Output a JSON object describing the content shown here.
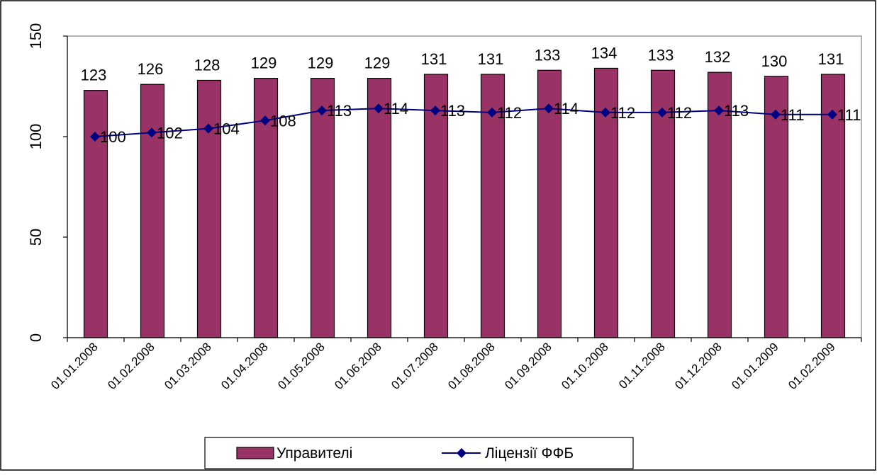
{
  "chart_data": {
    "type": "bar",
    "categories": [
      "01.01.2008",
      "01.02.2008",
      "01.03.2008",
      "01.04.2008",
      "01.05.2008",
      "01.06.2008",
      "01.07.2008",
      "01.08.2008",
      "01.09.2008",
      "01.10.2008",
      "01.11.2008",
      "01.12.2008",
      "01.01.2009",
      "01.02.2009"
    ],
    "series": [
      {
        "name": "Управителі",
        "kind": "bar",
        "color": "#993366",
        "values": [
          123,
          126,
          128,
          129,
          129,
          129,
          131,
          131,
          133,
          134,
          133,
          132,
          130,
          131
        ]
      },
      {
        "name": "Ліцензії ФФБ",
        "kind": "line",
        "color": "#000080",
        "values": [
          100,
          102,
          104,
          108,
          113,
          114,
          113,
          112,
          114,
          112,
          112,
          113,
          111,
          111
        ]
      }
    ],
    "ylim": [
      0,
      150
    ],
    "yticks": [
      "0",
      "50",
      "100",
      "150"
    ],
    "grid": false,
    "legend": "bottom",
    "plot_background": "#ffffff",
    "border_color": "#000000"
  }
}
